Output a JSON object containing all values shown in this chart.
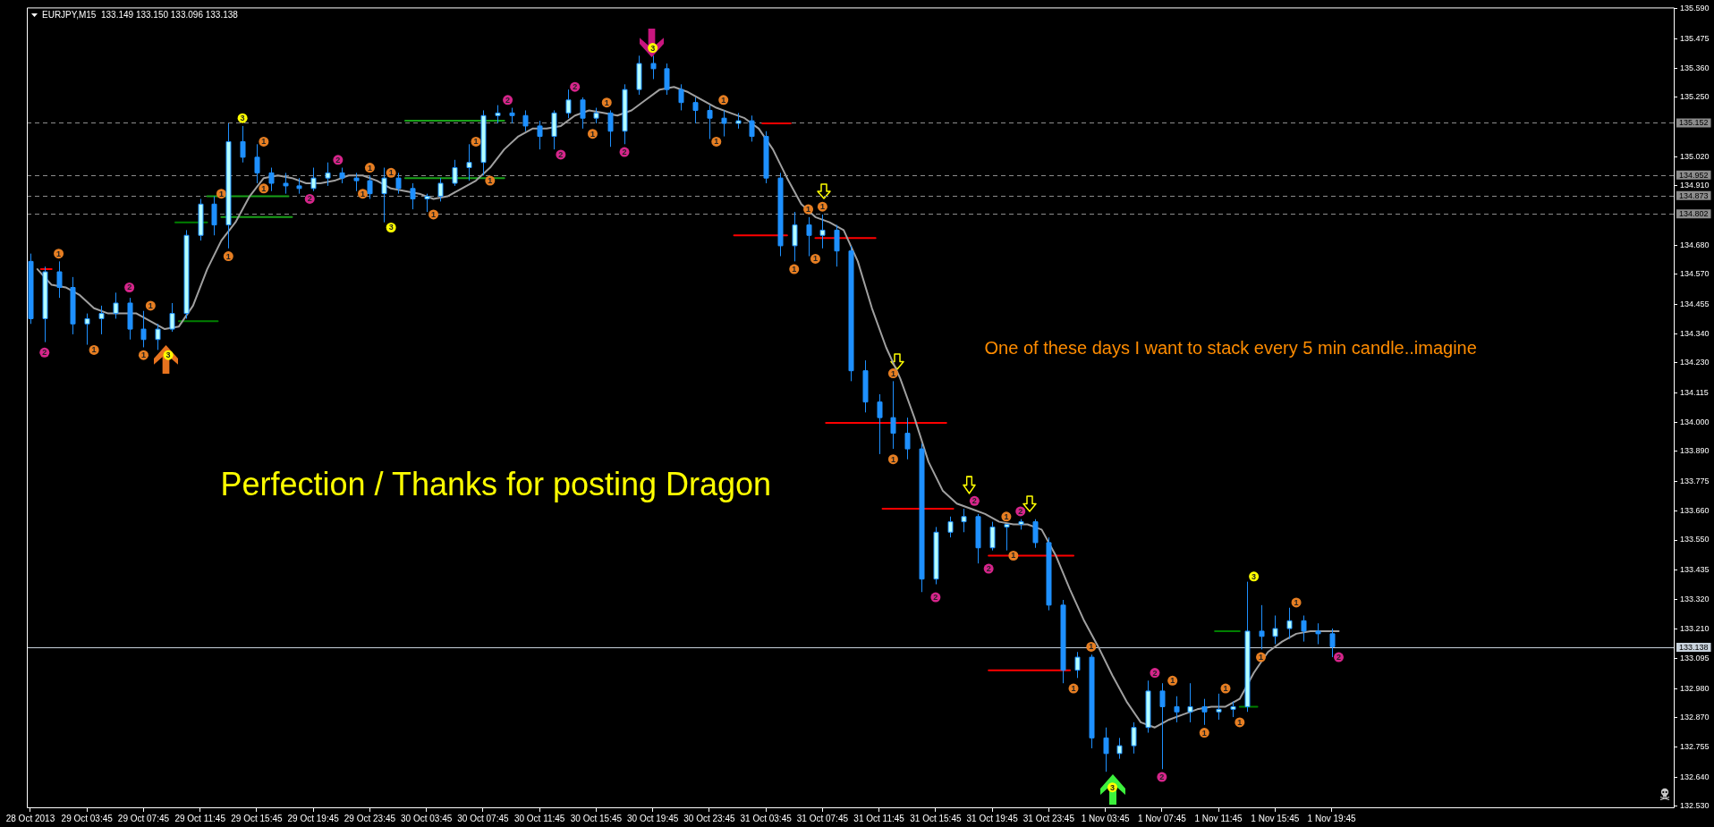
{
  "chart_data": {
    "type": "candlestick",
    "title": "EURJPY,M15  133.149 133.150 133.096 133.138",
    "x": [
      "2013-10-28T23:45",
      "2013-10-29T00:45",
      "2013-10-29T01:45",
      "2013-10-29T02:45",
      "2013-10-29T03:45",
      "2013-10-29T04:45",
      "2013-10-29T05:45",
      "2013-10-29T06:45",
      "2013-10-29T07:45",
      "2013-10-29T08:45",
      "2013-10-29T09:45",
      "2013-10-29T10:45",
      "2013-10-29T11:45",
      "2013-10-29T12:45",
      "2013-10-29T13:45",
      "2013-10-29T14:45",
      "2013-10-29T15:45",
      "2013-10-29T16:45",
      "2013-10-29T17:45",
      "2013-10-29T18:45",
      "2013-10-29T19:45",
      "2013-10-29T20:45",
      "2013-10-29T21:45",
      "2013-10-29T22:45",
      "2013-10-29T23:45",
      "2013-10-30T00:45",
      "2013-10-30T01:45",
      "2013-10-30T02:45",
      "2013-10-30T03:45",
      "2013-10-30T04:45",
      "2013-10-30T05:45",
      "2013-10-30T06:45",
      "2013-10-30T07:45",
      "2013-10-30T08:45",
      "2013-10-30T09:45",
      "2013-10-30T10:45",
      "2013-10-30T11:45",
      "2013-10-30T12:45",
      "2013-10-30T13:45",
      "2013-10-30T14:45",
      "2013-10-30T15:45",
      "2013-10-30T16:45",
      "2013-10-30T17:45",
      "2013-10-30T18:45",
      "2013-10-30T19:45",
      "2013-10-30T20:45",
      "2013-10-30T21:45",
      "2013-10-30T22:45",
      "2013-10-30T23:45",
      "2013-10-31T00:45",
      "2013-10-31T01:45",
      "2013-10-31T02:45",
      "2013-10-31T03:45",
      "2013-10-31T04:45",
      "2013-10-31T05:45",
      "2013-10-31T06:45",
      "2013-10-31T07:45",
      "2013-10-31T08:45",
      "2013-10-31T09:45",
      "2013-10-31T10:45",
      "2013-10-31T11:45",
      "2013-10-31T12:45",
      "2013-10-31T13:45",
      "2013-10-31T14:45",
      "2013-10-31T15:45",
      "2013-10-31T16:45",
      "2013-10-31T17:45",
      "2013-10-31T18:45",
      "2013-10-31T19:45",
      "2013-10-31T20:45",
      "2013-10-31T21:45",
      "2013-10-31T22:45",
      "2013-10-31T23:45",
      "2013-11-01T00:45",
      "2013-11-01T01:45",
      "2013-11-01T02:45",
      "2013-11-01T03:45",
      "2013-11-01T04:45",
      "2013-11-01T05:45",
      "2013-11-01T06:45",
      "2013-11-01T07:45",
      "2013-11-01T08:45",
      "2013-11-01T09:45",
      "2013-11-01T10:45",
      "2013-11-01T11:45",
      "2013-11-01T12:45",
      "2013-11-01T13:45",
      "2013-11-01T14:45",
      "2013-11-01T15:45",
      "2013-11-01T16:45",
      "2013-11-01T17:45",
      "2013-11-01T18:45",
      "2013-11-01T19:45"
    ],
    "ohlc": [
      [
        134.62,
        134.65,
        134.38,
        134.4
      ],
      [
        134.4,
        134.6,
        134.31,
        134.58
      ],
      [
        134.58,
        134.62,
        134.48,
        134.52
      ],
      [
        134.52,
        134.56,
        134.34,
        134.38
      ],
      [
        134.38,
        134.42,
        134.3,
        134.4
      ],
      [
        134.4,
        134.45,
        134.34,
        134.42
      ],
      [
        134.42,
        134.5,
        134.4,
        134.46
      ],
      [
        134.46,
        134.48,
        134.32,
        134.36
      ],
      [
        134.36,
        134.43,
        134.29,
        134.32
      ],
      [
        134.32,
        134.38,
        134.28,
        134.36
      ],
      [
        134.36,
        134.46,
        134.35,
        134.42
      ],
      [
        134.42,
        134.74,
        134.4,
        134.72
      ],
      [
        134.72,
        134.86,
        134.7,
        134.84
      ],
      [
        134.84,
        134.87,
        134.72,
        134.76
      ],
      [
        134.76,
        135.15,
        134.67,
        135.08
      ],
      [
        135.08,
        135.14,
        135.0,
        135.02
      ],
      [
        135.02,
        135.07,
        134.92,
        134.96
      ],
      [
        134.96,
        134.98,
        134.89,
        134.92
      ],
      [
        134.92,
        134.96,
        134.88,
        134.91
      ],
      [
        134.91,
        134.94,
        134.88,
        134.9
      ],
      [
        134.9,
        134.98,
        134.89,
        134.94
      ],
      [
        134.94,
        135.0,
        134.91,
        134.96
      ],
      [
        134.96,
        134.98,
        134.92,
        134.94
      ],
      [
        134.94,
        134.96,
        134.89,
        134.93
      ],
      [
        134.93,
        134.95,
        134.86,
        134.88
      ],
      [
        134.88,
        134.98,
        134.77,
        134.94
      ],
      [
        134.94,
        134.96,
        134.88,
        134.9
      ],
      [
        134.9,
        134.92,
        134.82,
        134.86
      ],
      [
        134.86,
        134.88,
        134.81,
        134.87
      ],
      [
        134.87,
        134.94,
        134.85,
        134.92
      ],
      [
        134.92,
        135.01,
        134.91,
        134.98
      ],
      [
        134.98,
        135.07,
        134.93,
        135.0
      ],
      [
        135.0,
        135.2,
        134.95,
        135.18
      ],
      [
        135.18,
        135.22,
        135.15,
        135.19
      ],
      [
        135.19,
        135.21,
        135.15,
        135.18
      ],
      [
        135.18,
        135.2,
        135.12,
        135.14
      ],
      [
        135.14,
        135.16,
        135.05,
        135.1
      ],
      [
        135.1,
        135.2,
        135.05,
        135.19
      ],
      [
        135.19,
        135.28,
        135.17,
        135.24
      ],
      [
        135.24,
        135.25,
        135.13,
        135.17
      ],
      [
        135.17,
        135.21,
        135.15,
        135.19
      ],
      [
        135.19,
        135.2,
        135.06,
        135.12
      ],
      [
        135.12,
        135.3,
        135.07,
        135.28
      ],
      [
        135.28,
        135.41,
        135.26,
        135.38
      ],
      [
        135.38,
        135.41,
        135.32,
        135.36
      ],
      [
        135.36,
        135.38,
        135.26,
        135.28
      ],
      [
        135.28,
        135.3,
        135.2,
        135.23
      ],
      [
        135.23,
        135.25,
        135.15,
        135.2
      ],
      [
        135.2,
        135.22,
        135.09,
        135.17
      ],
      [
        135.17,
        135.2,
        135.1,
        135.15
      ],
      [
        135.15,
        135.19,
        135.13,
        135.16
      ],
      [
        135.16,
        135.18,
        135.08,
        135.1
      ],
      [
        135.1,
        135.12,
        134.92,
        134.94
      ],
      [
        134.94,
        134.96,
        134.64,
        134.68
      ],
      [
        134.68,
        134.81,
        134.62,
        134.76
      ],
      [
        134.76,
        134.79,
        134.64,
        134.72
      ],
      [
        134.72,
        134.8,
        134.67,
        134.74
      ],
      [
        134.74,
        134.76,
        134.6,
        134.66
      ],
      [
        134.66,
        134.68,
        134.16,
        134.2
      ],
      [
        134.2,
        134.24,
        134.04,
        134.08
      ],
      [
        134.08,
        134.11,
        133.88,
        134.02
      ],
      [
        134.02,
        134.16,
        133.9,
        133.96
      ],
      [
        133.96,
        134.02,
        133.86,
        133.9
      ],
      [
        133.9,
        133.92,
        133.35,
        133.4
      ],
      [
        133.4,
        133.6,
        133.38,
        133.58
      ],
      [
        133.58,
        133.64,
        133.56,
        133.62
      ],
      [
        133.62,
        133.67,
        133.58,
        133.64
      ],
      [
        133.64,
        133.65,
        133.46,
        133.52
      ],
      [
        133.52,
        133.62,
        133.51,
        133.6
      ],
      [
        133.6,
        133.61,
        133.51,
        133.61
      ],
      [
        133.61,
        133.63,
        133.59,
        133.62
      ],
      [
        133.62,
        133.63,
        133.52,
        133.54
      ],
      [
        133.54,
        133.56,
        133.28,
        133.3
      ],
      [
        133.3,
        133.32,
        133.0,
        133.05
      ],
      [
        133.05,
        133.12,
        133.02,
        133.1
      ],
      [
        133.1,
        133.11,
        132.75,
        132.79
      ],
      [
        132.79,
        132.83,
        132.66,
        132.73
      ],
      [
        132.73,
        132.79,
        132.71,
        132.76
      ],
      [
        132.76,
        132.85,
        132.73,
        132.83
      ],
      [
        132.83,
        133.01,
        132.81,
        132.97
      ],
      [
        132.97,
        133.0,
        132.67,
        132.91
      ],
      [
        132.91,
        132.95,
        132.85,
        132.89
      ],
      [
        132.89,
        133.0,
        132.85,
        132.91
      ],
      [
        132.91,
        132.94,
        132.84,
        132.89
      ],
      [
        132.89,
        132.96,
        132.86,
        132.9
      ],
      [
        132.9,
        132.93,
        132.87,
        132.91
      ],
      [
        132.91,
        133.39,
        132.89,
        133.2
      ],
      [
        133.2,
        133.3,
        133.13,
        133.18
      ],
      [
        133.18,
        133.26,
        133.15,
        133.21
      ],
      [
        133.21,
        133.29,
        133.17,
        133.24
      ],
      [
        133.24,
        133.26,
        133.16,
        133.2
      ],
      [
        133.2,
        133.23,
        133.15,
        133.19
      ],
      [
        133.19,
        133.21,
        133.1,
        133.14
      ]
    ],
    "color": "#1e90ff",
    "colors": [
      "#1e90ff",
      "#b4ffff",
      "#1e90ff",
      "#1e90ff",
      "#b4ffff",
      "#b4ffff",
      "#b4ffff",
      "#1e90ff",
      "#1e90ff",
      "#b4ffff",
      "#b4ffff",
      "#b4ffff",
      "#b4ffff",
      "#1e90ff",
      "#b4ffff",
      "#1e90ff",
      "#1e90ff",
      "#1e90ff",
      "#1e90ff",
      "#1e90ff",
      "#b4ffff",
      "#b4ffff",
      "#1e90ff",
      "#1e90ff",
      "#1e90ff",
      "#b4ffff",
      "#1e90ff",
      "#1e90ff",
      "#b4ffff",
      "#b4ffff",
      "#b4ffff",
      "#b4ffff",
      "#b4ffff",
      "#b4ffff",
      "#1e90ff",
      "#1e90ff",
      "#1e90ff",
      "#b4ffff",
      "#b4ffff",
      "#1e90ff",
      "#b4ffff",
      "#1e90ff",
      "#b4ffff",
      "#b4ffff",
      "#1e90ff",
      "#1e90ff",
      "#1e90ff",
      "#1e90ff",
      "#1e90ff",
      "#1e90ff",
      "#b4ffff",
      "#1e90ff",
      "#1e90ff",
      "#1e90ff",
      "#b4ffff",
      "#1e90ff",
      "#b4ffff",
      "#1e90ff",
      "#1e90ff",
      "#1e90ff",
      "#1e90ff",
      "#1e90ff",
      "#1e90ff",
      "#1e90ff",
      "#b4ffff",
      "#b4ffff",
      "#b4ffff",
      "#1e90ff",
      "#b4ffff",
      "#b4ffff",
      "#b4ffff",
      "#1e90ff",
      "#1e90ff",
      "#1e90ff",
      "#b4ffff",
      "#1e90ff",
      "#1e90ff",
      "#b4ffff",
      "#b4ffff",
      "#b4ffff",
      "#1e90ff",
      "#1e90ff",
      "#b4ffff",
      "#1e90ff",
      "#b4ffff",
      "#b4ffff",
      "#b4ffff",
      "#1e90ff",
      "#b4ffff",
      "#b4ffff",
      "#1e90ff",
      "#1e90ff",
      "#1e90ff"
    ],
    "marker": "none",
    "series": [
      {
        "type": "line",
        "color": "#a0a0a0",
        "x": [
          "2013-10-29T00:15",
          "2013-10-29T01:15",
          "2013-10-29T02:15",
          "2013-10-29T03:15",
          "2013-10-29T04:15",
          "2013-10-29T05:15",
          "2013-10-29T06:15",
          "2013-10-29T07:15",
          "2013-10-29T08:15",
          "2013-10-29T09:15",
          "2013-10-29T10:15",
          "2013-10-29T11:15",
          "2013-10-29T12:15",
          "2013-10-29T13:15",
          "2013-10-29T14:15",
          "2013-10-29T15:15",
          "2013-10-29T16:15",
          "2013-10-29T17:15",
          "2013-10-29T18:15",
          "2013-10-29T19:15",
          "2013-10-29T20:15",
          "2013-10-29T21:15",
          "2013-10-29T22:15",
          "2013-10-29T23:15",
          "2013-10-30T00:15",
          "2013-10-30T01:15",
          "2013-10-30T02:15",
          "2013-10-30T03:15",
          "2013-10-30T04:15",
          "2013-10-30T05:15",
          "2013-10-30T06:15",
          "2013-10-30T07:15",
          "2013-10-30T08:15",
          "2013-10-30T09:15",
          "2013-10-30T10:15",
          "2013-10-30T11:15",
          "2013-10-30T12:15",
          "2013-10-30T13:15",
          "2013-10-30T14:15",
          "2013-10-30T15:15",
          "2013-10-30T16:15",
          "2013-10-30T17:15",
          "2013-10-30T18:15",
          "2013-10-30T19:15",
          "2013-10-30T20:15",
          "2013-10-30T21:15",
          "2013-10-30T22:15",
          "2013-10-30T23:15",
          "2013-10-31T00:15",
          "2013-10-31T01:15",
          "2013-10-31T02:15",
          "2013-10-31T03:15",
          "2013-10-31T04:15",
          "2013-10-31T05:15",
          "2013-10-31T06:15",
          "2013-10-31T07:15",
          "2013-10-31T08:15",
          "2013-10-31T09:15",
          "2013-10-31T10:15",
          "2013-10-31T11:15",
          "2013-10-31T12:15",
          "2013-10-31T13:15",
          "2013-10-31T14:15",
          "2013-10-31T15:15",
          "2013-10-31T16:15",
          "2013-10-31T17:15",
          "2013-10-31T18:15",
          "2013-10-31T19:15",
          "2013-10-31T20:15",
          "2013-10-31T21:15",
          "2013-10-31T22:15",
          "2013-10-31T23:15",
          "2013-11-01T00:15",
          "2013-11-01T01:15",
          "2013-11-01T02:15",
          "2013-11-01T03:15",
          "2013-11-01T04:15",
          "2013-11-01T05:15",
          "2013-11-01T06:15",
          "2013-11-01T07:15",
          "2013-11-01T08:15",
          "2013-11-01T09:15",
          "2013-11-01T10:15",
          "2013-11-01T11:15",
          "2013-11-01T12:15",
          "2013-11-01T13:15",
          "2013-11-01T14:15",
          "2013-11-01T15:15",
          "2013-11-01T16:15",
          "2013-11-01T17:15",
          "2013-11-01T18:15",
          "2013-11-01T19:15",
          "2013-11-01T20:15"
        ],
        "values": [
          134.59,
          134.53,
          134.52,
          134.49,
          134.44,
          134.42,
          134.42,
          134.42,
          134.39,
          134.36,
          134.37,
          134.45,
          134.59,
          134.7,
          134.77,
          134.87,
          134.94,
          134.95,
          134.94,
          134.92,
          134.92,
          134.93,
          134.95,
          134.95,
          134.93,
          134.9,
          134.89,
          134.88,
          134.86,
          134.87,
          134.9,
          134.93,
          134.98,
          135.05,
          135.1,
          135.13,
          135.13,
          135.14,
          135.18,
          135.2,
          135.19,
          135.18,
          135.2,
          135.24,
          135.28,
          135.29,
          135.27,
          135.24,
          135.21,
          135.19,
          135.17,
          135.13,
          135.05,
          134.94,
          134.84,
          134.79,
          134.77,
          134.74,
          134.62,
          134.44,
          134.29,
          134.17,
          134.02,
          133.85,
          133.74,
          133.69,
          133.67,
          133.65,
          133.62,
          133.61,
          133.61,
          133.59,
          133.49,
          133.36,
          133.24,
          133.14,
          133.03,
          132.93,
          132.85,
          132.83,
          132.86,
          132.88,
          132.9,
          132.91,
          132.91,
          132.94,
          133.04,
          133.12,
          133.16,
          133.19,
          133.2,
          133.2,
          133.2
        ]
      },
      {
        "type": "line",
        "color": "#008000",
        "x": [
          "2013-10-29T10:00",
          "2013-10-29T12:15"
        ],
        "values": [
          134.77,
          134.77
        ]
      },
      {
        "type": "line",
        "color": "#008000",
        "x": [
          "2013-10-29T10:15",
          "2013-10-29T13:00"
        ],
        "values": [
          134.39,
          134.39
        ]
      },
      {
        "type": "line",
        "color": "#19a019",
        "x": [
          "2013-10-29T12:15",
          "2013-10-29T18:00"
        ],
        "values": [
          134.87,
          134.87
        ]
      },
      {
        "type": "line",
        "color": "#19a019",
        "x": [
          "2013-10-29T13:15",
          "2013-10-29T18:15"
        ],
        "values": [
          134.79,
          134.79
        ]
      },
      {
        "type": "line",
        "color": "#19a019",
        "x": [
          "2013-10-30T02:15",
          "2013-10-30T09:15"
        ],
        "values": [
          135.16,
          135.16
        ]
      },
      {
        "type": "line",
        "color": "#19a019",
        "x": [
          "2013-10-30T02:15",
          "2013-10-30T09:15"
        ],
        "values": [
          134.94,
          134.94
        ]
      },
      {
        "type": "line",
        "color": "#008000",
        "x": [
          "2013-11-01T11:30",
          "2013-11-01T13:15"
        ],
        "values": [
          133.2,
          133.2
        ]
      },
      {
        "type": "line",
        "color": "#008000",
        "x": [
          "2013-11-01T13:15",
          "2013-11-01T14:30"
        ],
        "values": [
          132.91,
          132.91
        ]
      },
      {
        "type": "line",
        "color": "#ff0000",
        "x": [
          "2013-10-29T00:30",
          "2013-10-29T01:15"
        ],
        "values": [
          134.59,
          134.59
        ]
      },
      {
        "type": "line",
        "color": "#ff0000",
        "x": [
          "2013-10-31T03:30",
          "2013-10-31T05:30"
        ],
        "values": [
          135.15,
          135.15
        ]
      },
      {
        "type": "line",
        "color": "#ff0000",
        "x": [
          "2013-10-31T01:30",
          "2013-10-31T05:15"
        ],
        "values": [
          134.72,
          134.72
        ]
      },
      {
        "type": "line",
        "color": "#ff0000",
        "x": [
          "2013-10-31T07:15",
          "2013-10-31T11:30"
        ],
        "values": [
          134.71,
          134.71
        ]
      },
      {
        "type": "line",
        "color": "#ff0000",
        "x": [
          "2013-10-31T08:00",
          "2013-10-31T16:30"
        ],
        "values": [
          134.0,
          134.0
        ]
      },
      {
        "type": "line",
        "color": "#ff0000",
        "x": [
          "2013-10-31T12:00",
          "2013-10-31T17:00"
        ],
        "values": [
          133.67,
          133.67
        ]
      },
      {
        "type": "line",
        "color": "#ff0000",
        "x": [
          "2013-10-31T19:30",
          "2013-11-01T01:30"
        ],
        "values": [
          133.49,
          133.49
        ]
      },
      {
        "type": "line",
        "color": "#ff0000",
        "x": [
          "2013-10-31T19:30",
          "2013-11-01T01:15"
        ],
        "values": [
          133.05,
          133.05
        ]
      },
      {
        "type": "scatter",
        "marker": "circle",
        "color": "#e67e22",
        "x": [
          "2013-10-29T01:45",
          "2013-10-29T04:15",
          "2013-10-29T08:15",
          "2013-10-29T07:45",
          "2013-10-29T13:45",
          "2013-10-29T13:15",
          "2013-10-29T16:15",
          "2013-10-29T16:15",
          "2013-10-29T23:15",
          "2013-10-29T23:45",
          "2013-10-30T01:15",
          "2013-10-30T04:15",
          "2013-10-30T07:15",
          "2013-10-30T08:15",
          "2013-10-30T15:30",
          "2013-10-30T16:30",
          "2013-10-31T00:45",
          "2013-10-31T00:15",
          "2013-10-31T06:45",
          "2013-10-31T05:45",
          "2013-10-31T07:45",
          "2013-10-31T07:15",
          "2013-10-31T12:45",
          "2013-10-31T12:45",
          "2013-10-31T20:45",
          "2013-10-31T21:15",
          "2013-11-01T02:45",
          "2013-11-01T01:30",
          "2013-11-01T08:30",
          "2013-11-01T10:45",
          "2013-11-01T12:15",
          "2013-11-01T13:15",
          "2013-11-01T14:45",
          "2013-11-01T17:15"
        ],
        "values": [
          134.65,
          134.28,
          134.45,
          134.26,
          134.64,
          134.88,
          135.08,
          134.9,
          134.88,
          134.98,
          134.96,
          134.8,
          135.08,
          134.93,
          135.11,
          135.23,
          135.24,
          135.08,
          134.82,
          134.59,
          134.83,
          134.63,
          134.19,
          133.86,
          133.64,
          133.49,
          133.14,
          132.98,
          133.01,
          132.81,
          132.98,
          132.85,
          133.1,
          133.31
        ]
      },
      {
        "type": "scatter",
        "marker": "circle",
        "color": "#d6258b",
        "x": [
          "2013-10-29T00:45",
          "2013-10-29T06:45",
          "2013-10-29T19:30",
          "2013-10-29T21:30",
          "2013-10-30T09:30",
          "2013-10-30T13:15",
          "2013-10-30T14:15",
          "2013-10-30T17:45",
          "2013-10-31T15:45",
          "2013-10-31T18:30",
          "2013-10-31T19:30",
          "2013-10-31T21:45",
          "2013-11-01T07:15",
          "2013-11-01T07:45",
          "2013-11-01T20:15"
        ],
        "values": [
          134.27,
          134.52,
          134.86,
          135.01,
          135.24,
          135.03,
          135.29,
          135.04,
          133.33,
          133.7,
          133.44,
          133.66,
          133.04,
          132.64,
          133.1
        ]
      },
      {
        "type": "scatter",
        "marker": "circle",
        "color": "#ffff00",
        "x": [
          "2013-10-29T09:30",
          "2013-10-29T14:45",
          "2013-10-30T01:15",
          "2013-10-30T19:45",
          "2013-11-01T04:15",
          "2013-11-01T14:15"
        ],
        "values": [
          134.26,
          135.17,
          134.75,
          135.44,
          132.6,
          133.41
        ]
      }
    ],
    "xlim": [
      "2013-10-28T23:30",
      "2013-11-02T20:00"
    ],
    "xticks": [
      {
        "value": "2013-10-28T23:45",
        "label": "28 Oct 2013"
      },
      {
        "value": "2013-10-29T03:45",
        "label": "29 Oct 03:45"
      },
      {
        "value": "2013-10-29T07:45",
        "label": "29 Oct 07:45"
      },
      {
        "value": "2013-10-29T11:45",
        "label": "29 Oct 11:45"
      },
      {
        "value": "2013-10-29T15:45",
        "label": "29 Oct 15:45"
      },
      {
        "value": "2013-10-29T19:45",
        "label": "29 Oct 19:45"
      },
      {
        "value": "2013-10-29T23:45",
        "label": "29 Oct 23:45"
      },
      {
        "value": "2013-10-30T03:45",
        "label": "30 Oct 03:45"
      },
      {
        "value": "2013-10-30T07:45",
        "label": "30 Oct 07:45"
      },
      {
        "value": "2013-10-30T11:45",
        "label": "30 Oct 11:45"
      },
      {
        "value": "2013-10-30T15:45",
        "label": "30 Oct 15:45"
      },
      {
        "value": "2013-10-30T19:45",
        "label": "30 Oct 19:45"
      },
      {
        "value": "2013-10-30T23:45",
        "label": "30 Oct 23:45"
      },
      {
        "value": "2013-10-31T03:45",
        "label": "31 Oct 03:45"
      },
      {
        "value": "2013-10-31T07:45",
        "label": "31 Oct 07:45"
      },
      {
        "value": "2013-10-31T11:45",
        "label": "31 Oct 11:45"
      },
      {
        "value": "2013-10-31T15:45",
        "label": "31 Oct 15:45"
      },
      {
        "value": "2013-10-31T19:45",
        "label": "31 Oct 19:45"
      },
      {
        "value": "2013-10-31T23:45",
        "label": "31 Oct 23:45"
      },
      {
        "value": "2013-11-01T03:45",
        "label": "1 Nov 03:45"
      },
      {
        "value": "2013-11-01T07:45",
        "label": "1 Nov 07:45"
      },
      {
        "value": "2013-11-01T11:45",
        "label": "1 Nov 11:45"
      },
      {
        "value": "2013-11-01T15:45",
        "label": "1 Nov 15:45"
      },
      {
        "value": "2013-11-01T19:45",
        "label": "1 Nov 19:45"
      }
    ],
    "ylim": [
      132.52,
      135.595
    ],
    "yticks": [
      {
        "value": 135.59,
        "label": "135.590"
      },
      135.475,
      {
        "value": 135.36,
        "label": "135.360"
      },
      {
        "value": 135.25,
        "label": "135.250"
      },
      {
        "value": 135.02,
        "label": "135.020"
      },
      {
        "value": 134.91,
        "label": "134.910"
      },
      {
        "value": 134.68,
        "label": "134.680"
      },
      {
        "value": 134.57,
        "label": "134.570"
      },
      134.455,
      {
        "value": 134.34,
        "label": "134.340"
      },
      {
        "value": 134.23,
        "label": "134.230"
      },
      134.115,
      {
        "value": 134,
        "label": "134.000"
      },
      {
        "value": 133.89,
        "label": "133.890"
      },
      133.775,
      {
        "value": 133.66,
        "label": "133.660"
      },
      {
        "value": 133.55,
        "label": "133.550"
      },
      133.435,
      {
        "value": 133.32,
        "label": "133.320"
      },
      {
        "value": 133.21,
        "label": "133.210"
      },
      133.095,
      {
        "value": 132.98,
        "label": "132.980"
      },
      {
        "value": 132.87,
        "label": "132.870"
      },
      132.755,
      {
        "value": 132.64,
        "label": "132.640"
      },
      {
        "value": 132.53,
        "label": "132.530"
      }
    ],
    "ref_lines": [
      {
        "axis": "y",
        "value": 135.152,
        "label": "135.152",
        "color": "#8c8c8c",
        "line_style": "dashed"
      },
      {
        "axis": "y",
        "value": 134.952,
        "label": "134.952",
        "color": "#8c8c8c",
        "line_style": "dashed"
      },
      {
        "axis": "y",
        "value": 134.873,
        "label": "134.873",
        "color": "#8c8c8c",
        "line_style": "dashed"
      },
      {
        "axis": "y",
        "value": 134.802,
        "label": "134.802",
        "color": "#8c8c8c",
        "line_style": "dashed"
      },
      {
        "axis": "y",
        "value": 133.138,
        "label": "133.138",
        "color": "#c8d2dc",
        "line_style": "solid"
      }
    ],
    "annotations": [
      "Perfection / Thanks for posting Dragon",
      "One of these days I want to stack every 5 min candle..imagine",
      {
        "text": "1",
        "x": "2013-10-29T01:45",
        "y": 134.65
      },
      {
        "text": "1",
        "x": "2013-10-29T04:15",
        "y": 134.28
      },
      {
        "text": "1",
        "x": "2013-10-29T08:15",
        "y": 134.45
      },
      {
        "text": "1",
        "x": "2013-10-29T07:45",
        "y": 134.26
      },
      {
        "text": "1",
        "x": "2013-10-29T13:45",
        "y": 134.64
      },
      {
        "text": "1",
        "x": "2013-10-29T13:15",
        "y": 134.88
      },
      {
        "text": "1",
        "x": "2013-10-29T16:15",
        "y": 135.08
      },
      {
        "text": "1",
        "x": "2013-10-29T16:15",
        "y": 134.9
      },
      {
        "text": "1",
        "x": "2013-10-29T23:15",
        "y": 134.88
      },
      {
        "text": "1",
        "x": "2013-10-29T23:45",
        "y": 134.98
      },
      {
        "text": "1",
        "x": "2013-10-30T01:15",
        "y": 134.96
      },
      {
        "text": "1",
        "x": "2013-10-30T04:15",
        "y": 134.8
      },
      {
        "text": "1",
        "x": "2013-10-30T07:15",
        "y": 135.08
      },
      {
        "text": "1",
        "x": "2013-10-30T08:15",
        "y": 134.93
      },
      {
        "text": "1",
        "x": "2013-10-30T15:30",
        "y": 135.11
      },
      {
        "text": "1",
        "x": "2013-10-30T16:30",
        "y": 135.23
      },
      {
        "text": "1",
        "x": "2013-10-31T00:45",
        "y": 135.24
      },
      {
        "text": "1",
        "x": "2013-10-31T00:15",
        "y": 135.08
      },
      {
        "text": "1",
        "x": "2013-10-31T06:45",
        "y": 134.82
      },
      {
        "text": "1",
        "x": "2013-10-31T05:45",
        "y": 134.59
      },
      {
        "text": "1",
        "x": "2013-10-31T07:45",
        "y": 134.83
      },
      {
        "text": "1",
        "x": "2013-10-31T07:15",
        "y": 134.63
      },
      {
        "text": "1",
        "x": "2013-10-31T12:45",
        "y": 134.19
      },
      {
        "text": "1",
        "x": "2013-10-31T12:45",
        "y": 133.86
      },
      {
        "text": "1",
        "x": "2013-10-31T20:45",
        "y": 133.64
      },
      {
        "text": "1",
        "x": "2013-10-31T21:15",
        "y": 133.49
      },
      {
        "text": "1",
        "x": "2013-11-01T02:45",
        "y": 133.14
      },
      {
        "text": "1",
        "x": "2013-11-01T01:30",
        "y": 132.98
      },
      {
        "text": "1",
        "x": "2013-11-01T08:30",
        "y": 133.01
      },
      {
        "text": "1",
        "x": "2013-11-01T10:45",
        "y": 132.81
      },
      {
        "text": "1",
        "x": "2013-11-01T12:15",
        "y": 132.98
      },
      {
        "text": "1",
        "x": "2013-11-01T13:15",
        "y": 132.85
      },
      {
        "text": "1",
        "x": "2013-11-01T14:45",
        "y": 133.1
      },
      {
        "text": "1",
        "x": "2013-11-01T17:15",
        "y": 133.31
      },
      {
        "text": "2",
        "x": "2013-10-29T00:45",
        "y": 134.27
      },
      {
        "text": "2",
        "x": "2013-10-29T06:45",
        "y": 134.52
      },
      {
        "text": "2",
        "x": "2013-10-29T19:30",
        "y": 134.86
      },
      {
        "text": "2",
        "x": "2013-10-29T21:30",
        "y": 135.01
      },
      {
        "text": "2",
        "x": "2013-10-30T09:30",
        "y": 135.24
      },
      {
        "text": "2",
        "x": "2013-10-30T13:15",
        "y": 135.03
      },
      {
        "text": "2",
        "x": "2013-10-30T14:15",
        "y": 135.29
      },
      {
        "text": "2",
        "x": "2013-10-30T17:45",
        "y": 135.04
      },
      {
        "text": "2",
        "x": "2013-10-31T15:45",
        "y": 133.33
      },
      {
        "text": "2",
        "x": "2013-10-31T18:30",
        "y": 133.7
      },
      {
        "text": "2",
        "x": "2013-10-31T19:30",
        "y": 133.44
      },
      {
        "text": "2",
        "x": "2013-10-31T21:45",
        "y": 133.66
      },
      {
        "text": "2",
        "x": "2013-11-01T07:15",
        "y": 133.04
      },
      {
        "text": "2",
        "x": "2013-11-01T07:45",
        "y": 132.64
      },
      {
        "text": "2",
        "x": "2013-11-01T20:15",
        "y": 133.1
      },
      {
        "text": "3",
        "x": "2013-10-29T09:30",
        "y": 134.26
      },
      {
        "text": "3",
        "x": "2013-10-29T14:45",
        "y": 135.17
      },
      {
        "text": "3",
        "x": "2013-10-30T01:15",
        "y": 134.75
      },
      {
        "text": "3",
        "x": "2013-10-30T19:45",
        "y": 135.44
      },
      {
        "text": "3",
        "x": "2013-11-01T04:15",
        "y": 132.6
      },
      {
        "text": "3",
        "x": "2013-11-01T14:15",
        "y": 133.41
      }
    ]
  }
}
